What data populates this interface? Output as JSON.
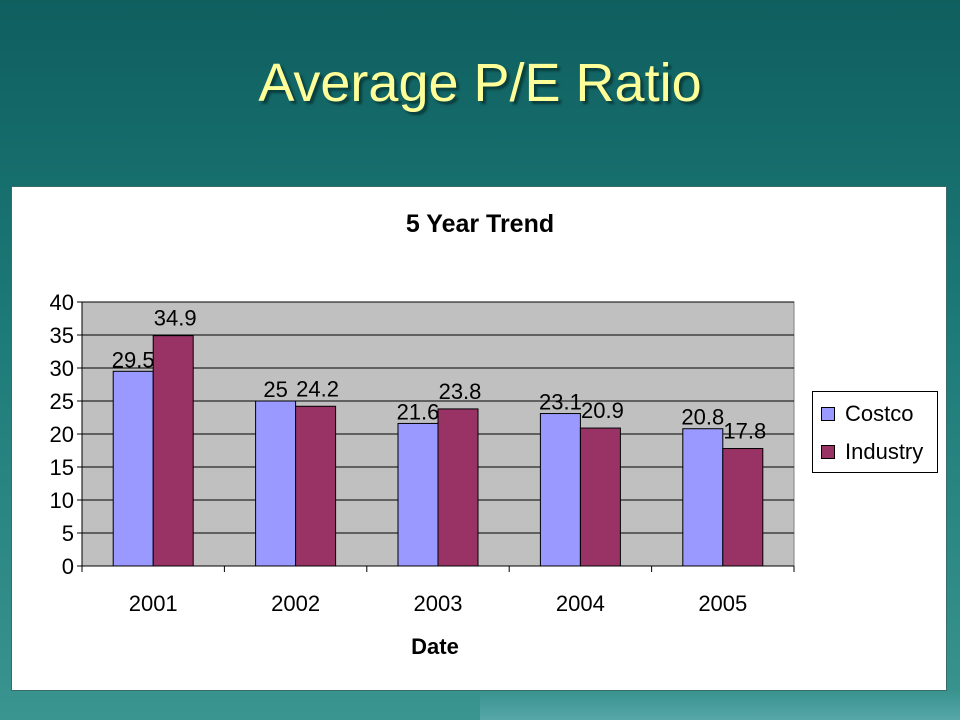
{
  "slide": {
    "title": "Average P/E Ratio"
  },
  "colors": {
    "background": "#1c7a78",
    "title": "#ffff99",
    "plot_area": "#c0c0c0",
    "costco": "#9999ff",
    "industry": "#993366"
  },
  "chart_data": {
    "type": "bar",
    "title": "5 Year Trend",
    "xlabel": "Date",
    "ylabel": "",
    "categories": [
      "2001",
      "2002",
      "2003",
      "2004",
      "2005"
    ],
    "series": [
      {
        "name": "Costco",
        "values": [
          29.5,
          25,
          21.6,
          23.1,
          20.8
        ],
        "labels": [
          "29.5",
          "25",
          "21.6",
          "23.1",
          "20.8"
        ]
      },
      {
        "name": "Industry",
        "values": [
          34.9,
          24.2,
          23.8,
          20.9,
          17.8
        ],
        "labels": [
          "34.9",
          "24.2",
          "23.8",
          "20.9",
          "17.8"
        ]
      }
    ],
    "ylim": [
      0,
      40
    ],
    "yticks": [
      "0",
      "5",
      "10",
      "15",
      "20",
      "25",
      "30",
      "35",
      "40"
    ],
    "grid": true,
    "legend": "right"
  }
}
